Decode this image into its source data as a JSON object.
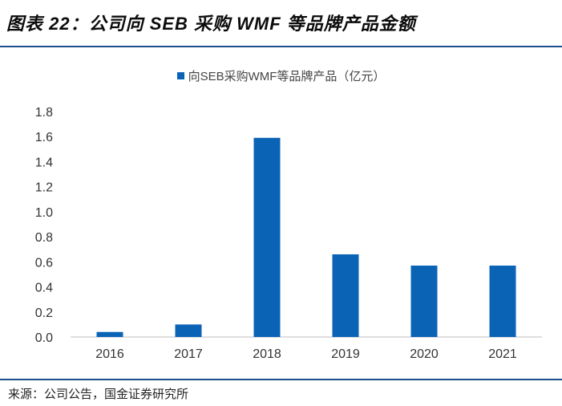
{
  "header": {
    "title": "图表 22：公司向 SEB 采购 WMF 等品牌产品金额"
  },
  "footer": {
    "source": "来源：公司公告，国金证券研究所"
  },
  "chart_data": {
    "type": "bar",
    "categories": [
      "2016",
      "2017",
      "2018",
      "2019",
      "2020",
      "2021"
    ],
    "series": [
      {
        "name": "向SEB采购WMF等品牌产品（亿元）",
        "values": [
          0.04,
          0.1,
          1.59,
          0.66,
          0.57,
          0.57
        ],
        "color": "#0b63b6"
      }
    ],
    "ylim": [
      0,
      1.8
    ],
    "yticks": [
      0.0,
      0.2,
      0.4,
      0.6,
      0.8,
      1.0,
      1.2,
      1.4,
      1.6,
      1.8
    ],
    "ytick_labels": [
      "0.0",
      "0.2",
      "0.4",
      "0.6",
      "0.8",
      "1.0",
      "1.2",
      "1.4",
      "1.6",
      "1.8"
    ],
    "grid": false,
    "legend_position": "top-center"
  }
}
